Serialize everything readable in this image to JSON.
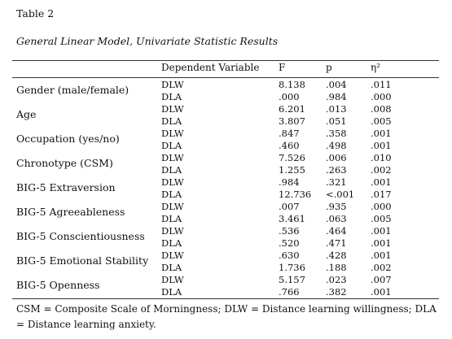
{
  "table_label": "Table 2",
  "caption": "General Linear Model, Univariate Statistic Results",
  "headers": {
    "dependent_variable": "Dependent Variable",
    "f": "F",
    "p": "p",
    "eta": "η²"
  },
  "rows": [
    {
      "predictor": "Gender (male/female)",
      "lines": [
        {
          "dv": "DLW",
          "f": "8.138",
          "p": ".004",
          "eta": ".011"
        },
        {
          "dv": "DLA",
          "f": ".000",
          "p": ".984",
          "eta": ".000"
        }
      ]
    },
    {
      "predictor": "Age",
      "lines": [
        {
          "dv": "DLW",
          "f": "6.201",
          "p": ".013",
          "eta": ".008"
        },
        {
          "dv": "DLA",
          "f": "3.807",
          "p": ".051",
          "eta": ".005"
        }
      ]
    },
    {
      "predictor": "Occupation (yes/no)",
      "lines": [
        {
          "dv": "DLW",
          "f": ".847",
          "p": ".358",
          "eta": ".001"
        },
        {
          "dv": "DLA",
          "f": ".460",
          "p": ".498",
          "eta": ".001"
        }
      ]
    },
    {
      "predictor": "Chronotype (CSM)",
      "lines": [
        {
          "dv": "DLW",
          "f": "7.526",
          "p": ".006",
          "eta": ".010"
        },
        {
          "dv": "DLA",
          "f": "1.255",
          "p": ".263",
          "eta": ".002"
        }
      ]
    },
    {
      "predictor": "BIG-5 Extraversion",
      "lines": [
        {
          "dv": "DLW",
          "f": ".984",
          "p": ".321",
          "eta": ".001"
        },
        {
          "dv": "DLA",
          "f": "12.736",
          "p": "<.001",
          "eta": ".017"
        }
      ]
    },
    {
      "predictor": "BIG-5 Agreeableness",
      "lines": [
        {
          "dv": "DLW",
          "f": ".007",
          "p": ".935",
          "eta": ".000"
        },
        {
          "dv": "DLA",
          "f": "3.461",
          "p": ".063",
          "eta": ".005"
        }
      ]
    },
    {
      "predictor": "BIG-5 Conscientiousness",
      "lines": [
        {
          "dv": "DLW",
          "f": ".536",
          "p": ".464",
          "eta": ".001"
        },
        {
          "dv": "DLA",
          "f": ".520",
          "p": ".471",
          "eta": ".001"
        }
      ]
    },
    {
      "predictor": "BIG-5 Emotional Stability",
      "lines": [
        {
          "dv": "DLW",
          "f": ".630",
          "p": ".428",
          "eta": ".001"
        },
        {
          "dv": "DLA",
          "f": "1.736",
          "p": ".188",
          "eta": ".002"
        }
      ]
    },
    {
      "predictor": "BIG-5 Openness",
      "lines": [
        {
          "dv": "DLW",
          "f": "5.157",
          "p": ".023",
          "eta": ".007"
        },
        {
          "dv": "DLA",
          "f": ".766",
          "p": ".382",
          "eta": ".001"
        }
      ]
    }
  ],
  "note": "CSM = Composite Scale of Morningness; DLW = Distance learning willingness; DLA = Distance learning anxiety."
}
